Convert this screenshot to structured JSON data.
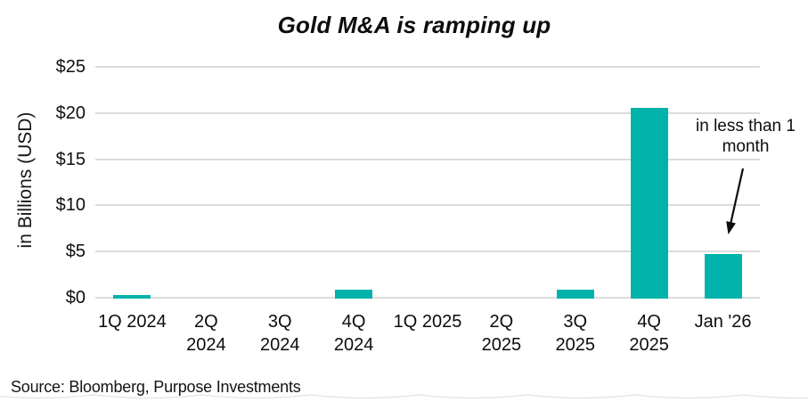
{
  "chart_data": {
    "type": "bar",
    "title": "Gold M&A is ramping up",
    "ylabel": "in Billions (USD)",
    "xlabel": "",
    "ylim": [
      0,
      25
    ],
    "ytick_step": 5,
    "ytick_labels": [
      "$0",
      "$5",
      "$10",
      "$15",
      "$20",
      "$25"
    ],
    "categories": [
      "1Q 2024",
      "2Q 2024",
      "3Q 2024",
      "4Q 2024",
      "1Q 2025",
      "2Q 2025",
      "3Q 2025",
      "4Q 2025",
      "Jan '26"
    ],
    "category_label_lines": [
      [
        "1Q 2024"
      ],
      [
        "2Q",
        "2024"
      ],
      [
        "3Q",
        "2024"
      ],
      [
        "4Q",
        "2024"
      ],
      [
        "1Q 2025"
      ],
      [
        "2Q",
        "2025"
      ],
      [
        "3Q",
        "2025"
      ],
      [
        "4Q",
        "2025"
      ],
      [
        "Jan '26"
      ]
    ],
    "values": [
      0.3,
      0,
      0,
      0.9,
      0,
      0,
      0.9,
      20.6,
      4.7
    ],
    "grid": true,
    "legend": false,
    "colors": {
      "bar": "#00b2a9",
      "gridline": "#dcdcdc",
      "text": "#111111"
    },
    "annotation": {
      "lines": [
        "in less than 1",
        "month"
      ],
      "points_to_category": "Jan '26"
    }
  },
  "source": "Source: Bloomberg, Purpose Investments"
}
